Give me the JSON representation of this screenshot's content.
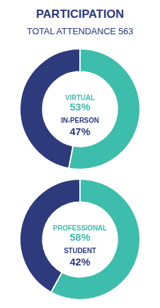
{
  "chart_data": [
    {
      "type": "donut",
      "title": "PARTICIPATION",
      "subtitle": "TOTAL ATTENDANCE 563",
      "categories": [
        "VIRTUAL",
        "IN-PERSON"
      ],
      "values": [
        53,
        47
      ],
      "value_labels": [
        "53%",
        "47%"
      ],
      "colors": [
        "#3dbdac",
        "#2d3a7c"
      ],
      "data_labels": true,
      "legend": false
    },
    {
      "type": "donut",
      "categories": [
        "PROFESSIONAL",
        "STUDENT"
      ],
      "values": [
        58,
        42
      ],
      "value_labels": [
        "58%",
        "42%"
      ],
      "colors": [
        "#3dbdac",
        "#2d3a7c"
      ],
      "data_labels": true,
      "legend": false
    }
  ]
}
